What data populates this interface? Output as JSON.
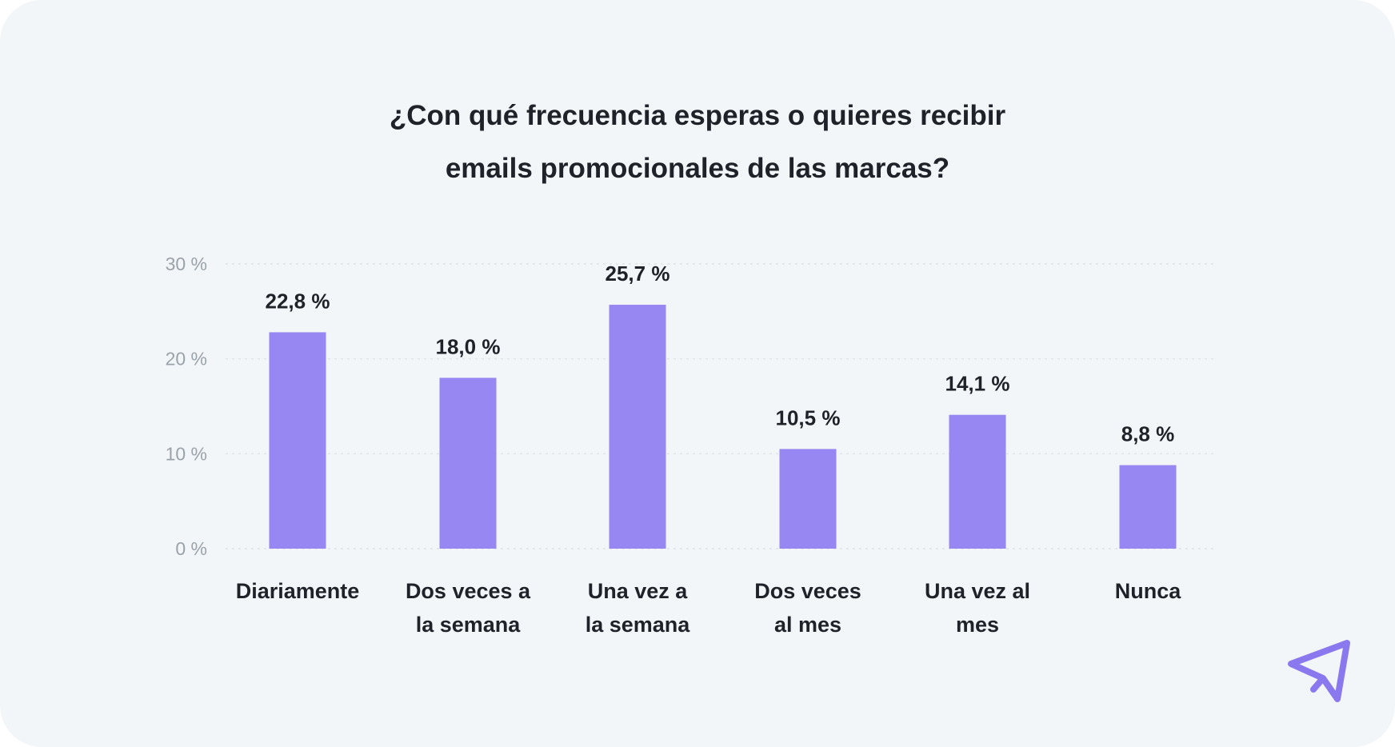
{
  "title_lines": [
    "¿Con qué frecuencia esperas o quieres recibir",
    "emails promocionales de las marcas?"
  ],
  "colors": {
    "background": "#f3f6f9",
    "bar": "#9787f2",
    "text": "#1f2329",
    "tick": "#9aa2aa",
    "grid": "#dfe3e8",
    "logo": "#8a78ee"
  },
  "logo_icon": "paper-plane-icon",
  "chart_data": {
    "type": "bar",
    "title": "¿Con qué frecuencia esperas o quieres recibir emails promocionales de las marcas?",
    "categories": [
      [
        "Diariamente"
      ],
      [
        "Dos veces a",
        "la semana"
      ],
      [
        "Una vez a",
        "la semana"
      ],
      [
        "Dos veces",
        "al mes"
      ],
      [
        "Una vez al",
        "mes"
      ],
      [
        "Nunca"
      ]
    ],
    "values": [
      22.8,
      18.0,
      25.7,
      10.5,
      14.1,
      8.8
    ],
    "value_labels": [
      "22,8 %",
      "18,0 %",
      "25,7 %",
      "10,5 %",
      "14,1 %",
      "8,8 %"
    ],
    "yticks": [
      0,
      10,
      20,
      30
    ],
    "ytick_labels": [
      "0 %",
      "10 %",
      "20 %",
      "30 %"
    ],
    "ylim": [
      0,
      30
    ],
    "grid": true,
    "legend": "none"
  }
}
